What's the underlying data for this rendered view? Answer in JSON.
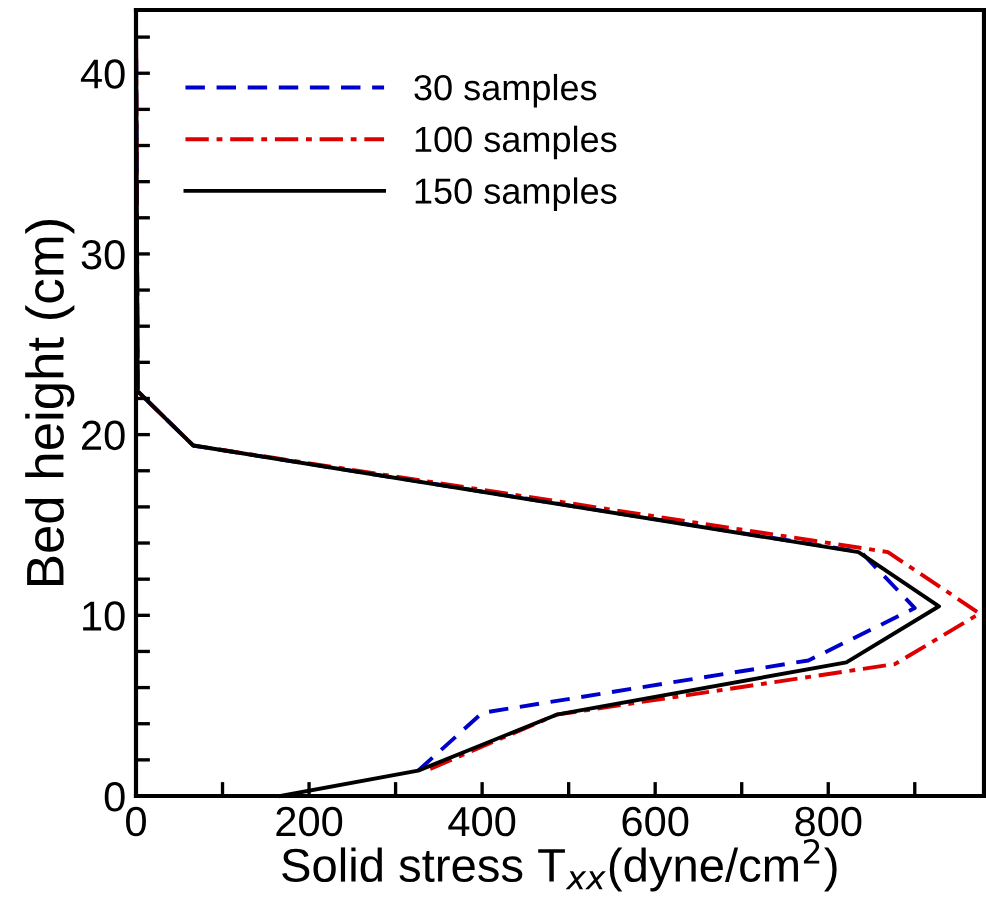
{
  "chart_data": {
    "type": "line",
    "xlabel": "Solid stress T$_{xx}$(dyne/cm$^{2}$)",
    "ylabel": "Bed height (cm)",
    "xlim": [
      0,
      980
    ],
    "ylim": [
      0,
      43.5
    ],
    "xticks": [
      0,
      {
        "value": 100,
        "label": null
      },
      200,
      {
        "value": 300,
        "label": null
      },
      400,
      {
        "value": 500,
        "label": null
      },
      600,
      {
        "value": 700,
        "label": null
      },
      800,
      {
        "value": 900,
        "label": null
      }
    ],
    "yticks": [
      0,
      {
        "value": 2,
        "label": null
      },
      {
        "value": 4,
        "label": null
      },
      {
        "value": 6,
        "label": null
      },
      {
        "value": 8,
        "label": null
      },
      10,
      {
        "value": 12,
        "label": null
      },
      {
        "value": 14,
        "label": null
      },
      {
        "value": 16,
        "label": null
      },
      {
        "value": 18,
        "label": null
      },
      20,
      {
        "value": 22,
        "label": null
      },
      {
        "value": 24,
        "label": null
      },
      {
        "value": 26,
        "label": null
      },
      {
        "value": 28,
        "label": null
      },
      30,
      {
        "value": 32,
        "label": null
      },
      {
        "value": 34,
        "label": null
      },
      {
        "value": 36,
        "label": null
      },
      {
        "value": 38,
        "label": null
      },
      40,
      {
        "value": 42,
        "label": null
      }
    ],
    "grid": false,
    "legend": "top left",
    "marker": "none",
    "series": [
      {
        "name": "30 samples",
        "color": "#0000cc",
        "line_style": "dashed",
        "x": [
          326,
          400,
          777,
          900,
          838,
          66,
          2,
          0
        ],
        "values": [
          1.4,
          4.6,
          7.5,
          10.4,
          13.5,
          19.4,
          22.4,
          43
        ]
      },
      {
        "name": "100 samples",
        "color": "#dd0000",
        "line_style": "dashdot",
        "x": [
          340,
          486,
          877,
          975,
          869,
          66,
          2,
          0
        ],
        "values": [
          1.5,
          4.5,
          7.3,
          10.1,
          13.5,
          19.4,
          22.4,
          43
        ]
      },
      {
        "name": "150 samples",
        "color": "#000000",
        "line_style": "solid",
        "x": [
          167,
          326,
          486,
          821,
          928,
          835,
          66,
          2,
          0
        ],
        "values": [
          0,
          1.4,
          4.5,
          7.4,
          10.5,
          13.5,
          19.4,
          22.4,
          43
        ]
      }
    ]
  }
}
